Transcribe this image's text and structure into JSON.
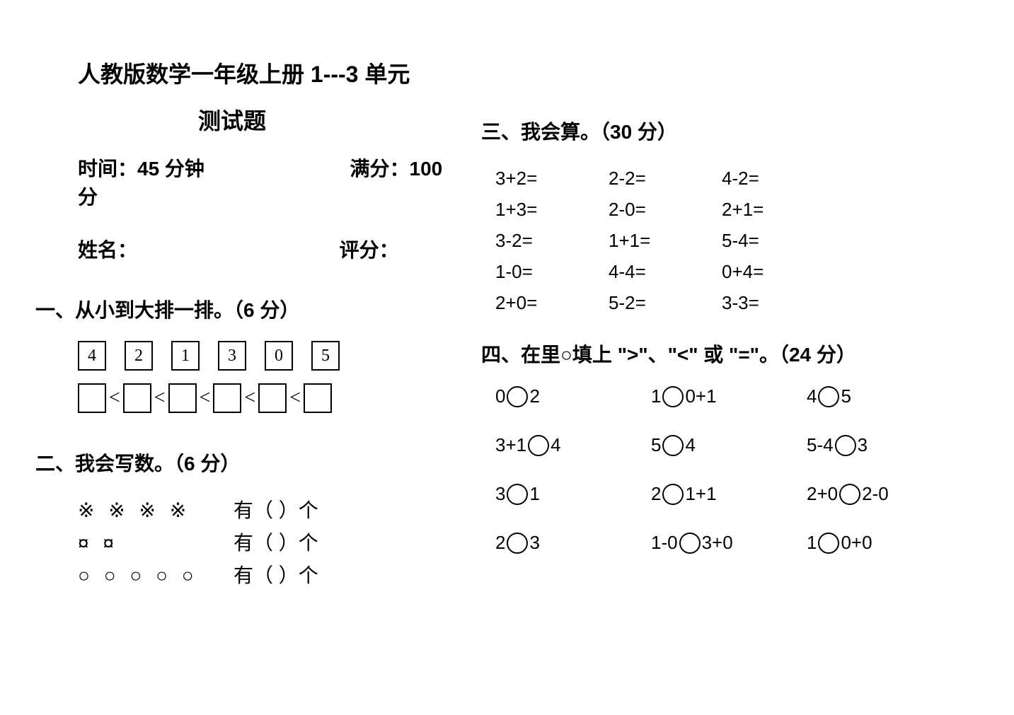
{
  "title_main": "人教版数学一年级上册 1---3 单元",
  "title_sub": "测试题",
  "meta": {
    "time_label": "时间：45 分钟",
    "full_label": "满分：100 分",
    "name_label": "姓名：",
    "score_label": "评分："
  },
  "section1": {
    "heading": "一、从小到大排一排。（6 分）",
    "numbers": [
      "4",
      "2",
      "1",
      "3",
      "0",
      "5"
    ],
    "lt": "<"
  },
  "section2": {
    "heading": "二、我会写数。（6 分）",
    "rows": [
      {
        "symbols": "※ ※ ※ ※",
        "label": "有（   ）个"
      },
      {
        "symbols": "¤ ¤",
        "label": "有（   ）个"
      },
      {
        "symbols": "○ ○ ○ ○ ○",
        "label": "有（   ）个"
      }
    ]
  },
  "section3": {
    "heading": "三、我会算。（30 分）",
    "rows": [
      [
        "3+2=",
        "2-2=",
        "4-2="
      ],
      [
        "1+3=",
        "2-0=",
        "2+1="
      ],
      [
        "3-2=",
        "1+1=",
        "5-4="
      ],
      [
        "1-0=",
        "4-4=",
        "0+4="
      ],
      [
        "2+0=",
        "5-2=",
        "3-3="
      ]
    ]
  },
  "section4": {
    "heading": "四、在里○填上 \">\"、\"<\" 或 \"=\"。（24 分）",
    "rows": [
      [
        {
          "l": "0",
          "r": "2"
        },
        {
          "l": "1",
          "r": "0+1"
        },
        {
          "l": "4",
          "r": "5"
        }
      ],
      [
        {
          "l": "3+1",
          "r": "4"
        },
        {
          "l": "5",
          "r": "4"
        },
        {
          "l": "5-4",
          "r": "3"
        }
      ],
      [
        {
          "l": "3",
          "r": "1"
        },
        {
          "l": "2",
          "r": "1+1"
        },
        {
          "l": "2+0",
          "r": "2-0"
        }
      ],
      [
        {
          "l": "2",
          "r": "3"
        },
        {
          "l": "1-0",
          "r": "3+0"
        },
        {
          "l": "1",
          "r": "0+0"
        }
      ]
    ]
  }
}
